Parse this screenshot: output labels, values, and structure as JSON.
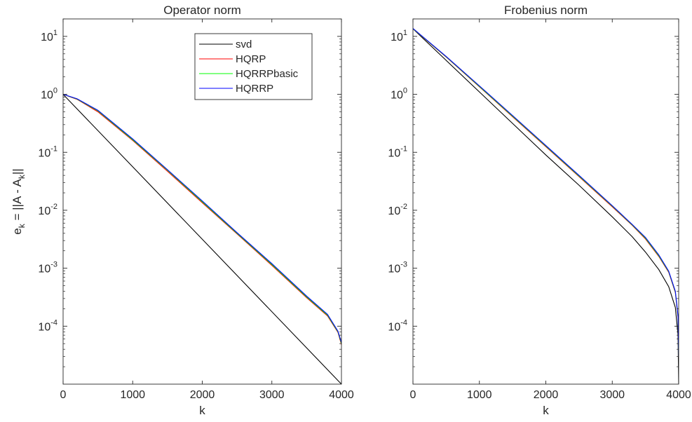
{
  "colors": {
    "svd": "#000000",
    "HQRP": "#ff0000",
    "HQRRPbasic": "#00ff00",
    "HQRRP": "#0000ff",
    "axis": "#262626",
    "background": "#ffffff"
  },
  "shared_ylabel": {
    "base": "e",
    "sub": "k",
    "mid": " = ||A - A",
    "sub2": "k",
    "end": "||"
  },
  "chart_data": [
    {
      "type": "line",
      "title": "Operator norm",
      "xlabel": "k",
      "ylabel": "e_k = ||A - A_k||",
      "yscale": "log",
      "xlim": [
        0,
        4000
      ],
      "ylim": [
        1e-05,
        20
      ],
      "x_ticks": [
        {
          "value": 0,
          "label": "0"
        },
        {
          "value": 1000,
          "label": "1000"
        },
        {
          "value": 2000,
          "label": "2000"
        },
        {
          "value": 3000,
          "label": "3000"
        },
        {
          "value": 4000,
          "label": "4000"
        }
      ],
      "y_ticks": [
        {
          "value": 10,
          "base": "10",
          "exp": "1"
        },
        {
          "value": 1,
          "base": "10",
          "exp": "0"
        },
        {
          "value": 0.1,
          "base": "10",
          "exp": "-1"
        },
        {
          "value": 0.01,
          "base": "10",
          "exp": "-2"
        },
        {
          "value": 0.001,
          "base": "10",
          "exp": "-3"
        },
        {
          "value": 0.0001,
          "base": "10",
          "exp": "-4"
        }
      ],
      "legend": {
        "location": "top-right",
        "entries": [
          "svd",
          "HQRP",
          "HQRRPbasic",
          "HQRRP"
        ]
      },
      "grid": false,
      "series": [
        {
          "name": "svd",
          "x": [
            0,
            4000
          ],
          "y": [
            1.0,
            1e-05
          ]
        },
        {
          "name": "HQRP",
          "x": [
            0,
            200,
            500,
            1000,
            1500,
            2000,
            2500,
            3000,
            3500,
            3800,
            3950,
            4000
          ],
          "y": [
            1.0,
            0.82,
            0.5,
            0.16,
            0.047,
            0.0135,
            0.0039,
            0.00112,
            0.00031,
            0.00015,
            7.8e-05,
            4.8e-05
          ]
        },
        {
          "name": "HQRRPbasic",
          "x": [
            0,
            200,
            500,
            1000,
            1500,
            2000,
            2500,
            3000,
            3500,
            3800,
            3950,
            4000
          ],
          "y": [
            1.0,
            0.83,
            0.52,
            0.165,
            0.049,
            0.014,
            0.004,
            0.00116,
            0.00032,
            0.000155,
            8e-05,
            5e-05
          ]
        },
        {
          "name": "HQRRP",
          "x": [
            0,
            200,
            500,
            1000,
            1500,
            2000,
            2500,
            3000,
            3500,
            3800,
            3950,
            4000
          ],
          "y": [
            1.0,
            0.84,
            0.53,
            0.17,
            0.05,
            0.0145,
            0.0041,
            0.0012,
            0.00033,
            0.00016,
            8.2e-05,
            5.2e-05
          ]
        }
      ]
    },
    {
      "type": "line",
      "title": "Frobenius norm",
      "xlabel": "k",
      "yscale": "log",
      "xlim": [
        0,
        4000
      ],
      "ylim": [
        1e-05,
        20
      ],
      "x_ticks": [
        {
          "value": 0,
          "label": "0"
        },
        {
          "value": 1000,
          "label": "1000"
        },
        {
          "value": 2000,
          "label": "2000"
        },
        {
          "value": 3000,
          "label": "3000"
        },
        {
          "value": 4000,
          "label": "4000"
        }
      ],
      "y_ticks": [
        {
          "value": 10,
          "base": "10",
          "exp": "1"
        },
        {
          "value": 1,
          "base": "10",
          "exp": "0"
        },
        {
          "value": 0.1,
          "base": "10",
          "exp": "-1"
        },
        {
          "value": 0.01,
          "base": "10",
          "exp": "-2"
        },
        {
          "value": 0.001,
          "base": "10",
          "exp": "-3"
        },
        {
          "value": 0.0001,
          "base": "10",
          "exp": "-4"
        }
      ],
      "grid": false,
      "series": [
        {
          "name": "svd",
          "x": [
            0,
            1000,
            2000,
            2500,
            3000,
            3300,
            3500,
            3700,
            3850,
            3950,
            3990,
            4000
          ],
          "y": [
            13.5,
            1.1,
            0.09,
            0.027,
            0.0077,
            0.0035,
            0.0019,
            0.00095,
            0.00048,
            0.00021,
            7e-05,
            1e-05
          ]
        },
        {
          "name": "HQRP",
          "x": [
            0,
            500,
            1000,
            1500,
            2000,
            2500,
            3000,
            3300,
            3500,
            3700,
            3850,
            3950,
            3990,
            4000
          ],
          "y": [
            13.5,
            4.4,
            1.35,
            0.41,
            0.125,
            0.038,
            0.0115,
            0.0055,
            0.0032,
            0.0016,
            0.00085,
            0.00038,
            0.00014,
            3e-05
          ]
        },
        {
          "name": "HQRRPbasic",
          "x": [
            0,
            500,
            1000,
            1500,
            2000,
            2500,
            3000,
            3300,
            3500,
            3700,
            3850,
            3950,
            3990,
            4000
          ],
          "y": [
            13.6,
            4.45,
            1.37,
            0.42,
            0.128,
            0.039,
            0.0118,
            0.0056,
            0.0033,
            0.00165,
            0.00087,
            0.00039,
            0.000145,
            3e-05
          ]
        },
        {
          "name": "HQRRP",
          "x": [
            0,
            500,
            1000,
            1500,
            2000,
            2500,
            3000,
            3300,
            3500,
            3700,
            3850,
            3950,
            3990,
            4000
          ],
          "y": [
            13.7,
            4.5,
            1.4,
            0.43,
            0.131,
            0.04,
            0.012,
            0.0057,
            0.0034,
            0.0017,
            0.00089,
            0.0004,
            0.00015,
            3e-05
          ]
        }
      ]
    }
  ]
}
